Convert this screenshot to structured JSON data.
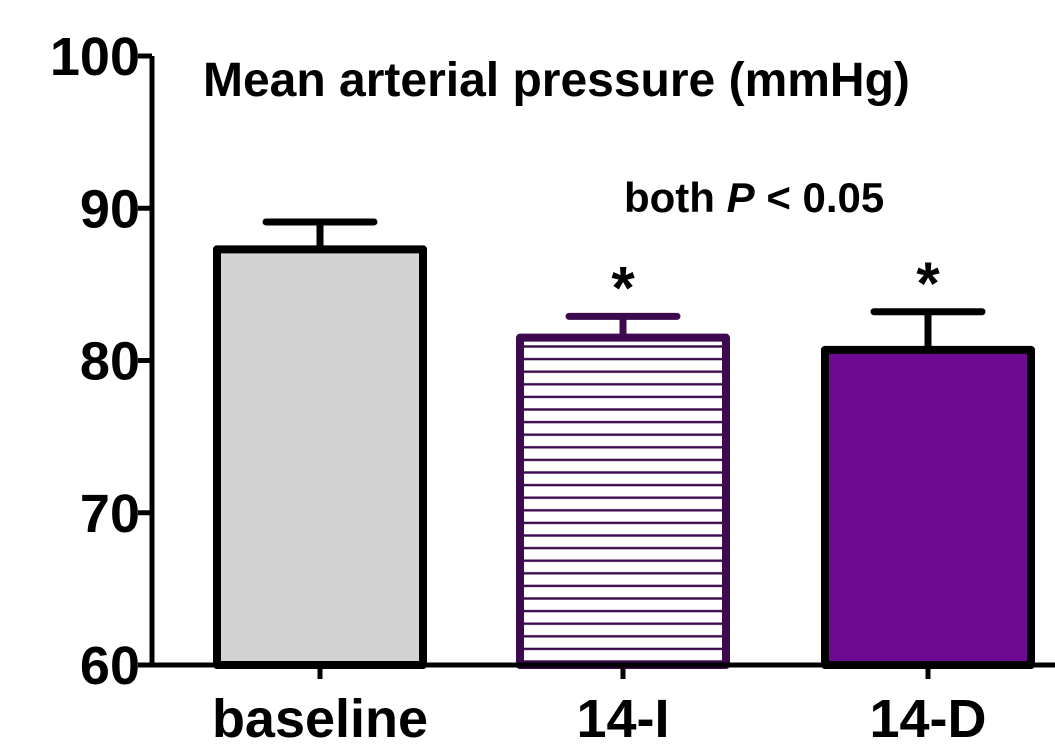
{
  "chart_data": {
    "type": "bar",
    "title": "Mean arterial pressure (mmHg)",
    "xlabel": "",
    "ylabel": "",
    "ylim": [
      60,
      100
    ],
    "yticks": [
      "60",
      "70",
      "80",
      "90",
      "100"
    ],
    "categories": [
      "baseline",
      "14-I",
      "14-D"
    ],
    "values": [
      87.3,
      81.5,
      80.7
    ],
    "errors": [
      1.8,
      1.4,
      2.5
    ],
    "significance_markers": [
      "",
      "*",
      "*"
    ],
    "annotation": {
      "prefix": "both",
      "stat": "P",
      "suffix": "< 0.05"
    },
    "bar_styles": [
      {
        "fill": "#d3d3d3",
        "stroke": "#000000",
        "pattern": "solid"
      },
      {
        "fill": "#ffffff",
        "stroke": "#3d0a4f",
        "pattern": "horizontal-lines",
        "line_color": "#3d0a4f"
      },
      {
        "fill": "#6e0a91",
        "stroke": "#000000",
        "pattern": "solid"
      }
    ],
    "grid": false,
    "legend": "none"
  }
}
